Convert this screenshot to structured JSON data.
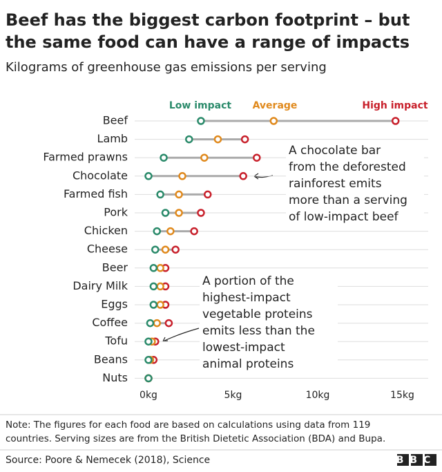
{
  "chart_data": {
    "type": "dot-range",
    "title": [
      "Beef has the biggest carbon footprint – but",
      "the same food can have a range of impacts"
    ],
    "subtitle": "Kilograms of greenhouse gas emissions per serving",
    "categories": [
      "Beef",
      "Lamb",
      "Farmed prawns",
      "Chocolate",
      "Farmed fish",
      "Pork",
      "Chicken",
      "Cheese",
      "Beer",
      "Dairy Milk",
      "Eggs",
      "Coffee",
      "Tofu",
      "Beans",
      "Nuts"
    ],
    "series": [
      {
        "name": "Low impact",
        "color": "#2a8a6a",
        "values": [
          3.1,
          2.4,
          0.9,
          0.0,
          0.7,
          1.0,
          0.5,
          0.4,
          0.3,
          0.3,
          0.3,
          0.1,
          0.0,
          0.0,
          0.0
        ]
      },
      {
        "name": "Average",
        "color": "#e0891c",
        "values": [
          7.4,
          4.1,
          3.3,
          2.0,
          1.8,
          1.8,
          1.3,
          1.0,
          0.7,
          0.7,
          0.7,
          0.5,
          0.2,
          0.1,
          0.0
        ]
      },
      {
        "name": "High impact",
        "color": "#c8202b",
        "values": [
          14.6,
          5.7,
          6.4,
          5.6,
          3.5,
          3.1,
          2.7,
          1.6,
          1.0,
          1.0,
          1.0,
          1.2,
          0.4,
          0.3,
          0.0
        ]
      }
    ],
    "xlim": [
      0,
      16
    ],
    "xticks": [
      {
        "value": 0,
        "label": "0kg"
      },
      {
        "value": 5,
        "label": "5kg"
      },
      {
        "value": 10,
        "label": "10kg"
      },
      {
        "value": 15,
        "label": "15kg"
      }
    ],
    "annotations": [
      {
        "lines": [
          "A chocolate bar",
          "from the deforested",
          "rainforest emits",
          "more than a serving",
          "of low-impact beef"
        ]
      },
      {
        "lines": [
          "A portion of the",
          "highest-impact",
          "vegetable proteins",
          "emits less than the",
          "lowest-impact",
          "animal proteins"
        ]
      }
    ],
    "note": [
      "Note: The figures for each food are based on calculations using data from 119",
      "countries. Serving sizes are from the British Dietetic Association (BDA) and Bupa."
    ],
    "source": "Source: Poore & Nemecek (2018), Science",
    "logo": "BBC"
  }
}
